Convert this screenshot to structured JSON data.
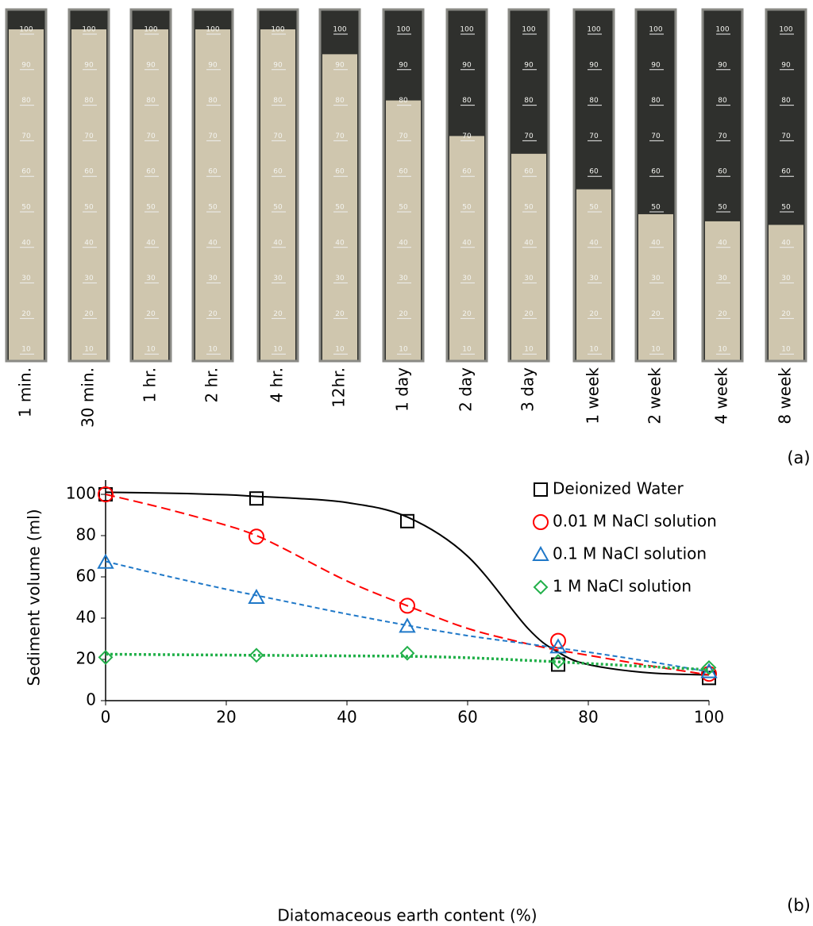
{
  "panel_a": {
    "label": "(a)",
    "labels": [
      "1 min.",
      "30 min.",
      "1 hr.",
      "2 hr.",
      "4 hr.",
      "12hr.",
      "1 day",
      "2 day",
      "3 day",
      "1 week",
      "2 week",
      "4 week",
      "8 week"
    ],
    "graduations": [
      100,
      90,
      80,
      70,
      60,
      50,
      40,
      30,
      20,
      10
    ],
    "sediment_ml": [
      100,
      100,
      100,
      100,
      100,
      93,
      80,
      70,
      65,
      55,
      48,
      46,
      45
    ]
  },
  "chart_data": {
    "type": "scatter",
    "panel_label": "(b)",
    "x_label": "Diatomaceous earth content (%)",
    "y_label": "Sediment volume (ml)",
    "x": [
      0,
      25,
      50,
      75,
      100
    ],
    "fit_x": [
      0,
      10,
      20,
      25,
      30,
      40,
      50,
      60,
      70,
      75,
      80,
      90,
      100
    ],
    "series": [
      {
        "name": "Deionized Water",
        "color": "#000000",
        "marker": "square",
        "dash": "solid",
        "values": [
          100,
          98,
          87,
          17.5,
          11
        ],
        "fit_values": [
          101,
          100.6,
          99.8,
          99,
          98.3,
          96,
          89,
          70,
          35,
          23.5,
          17.5,
          13.5,
          12.5
        ]
      },
      {
        "name": "0.01 M NaCl solution",
        "color": "#ff0000",
        "marker": "circle",
        "dash": "long",
        "values": [
          100,
          79.5,
          46,
          29,
          13
        ],
        "fit_values": [
          100,
          93,
          85,
          80,
          73,
          58,
          46,
          35,
          27.5,
          24.5,
          22,
          17,
          12.5
        ]
      },
      {
        "name": "0.1 M NaCl solution",
        "color": "#1f78c8",
        "marker": "triangle",
        "dash": "short",
        "values": [
          67,
          50,
          36,
          26,
          14
        ],
        "fit_values": [
          67.5,
          60.5,
          54,
          51,
          48,
          42,
          36.5,
          31.5,
          27.5,
          25.5,
          23.5,
          19,
          14
        ]
      },
      {
        "name": "1 M NaCl solution",
        "color": "#22b04a",
        "marker": "diamond",
        "dash": "dotted",
        "values": [
          21,
          22,
          23,
          19,
          16
        ],
        "fit_values": [
          22.5,
          22.3,
          22.1,
          22,
          21.9,
          21.7,
          21.5,
          20.8,
          19.5,
          18.8,
          18,
          16.5,
          15
        ]
      }
    ],
    "xlim": [
      0,
      100
    ],
    "ylim": [
      0,
      100
    ],
    "xticks": [
      0,
      20,
      40,
      60,
      80,
      100
    ],
    "yticks": [
      0,
      20,
      40,
      60,
      80,
      100
    ],
    "grid": false
  }
}
